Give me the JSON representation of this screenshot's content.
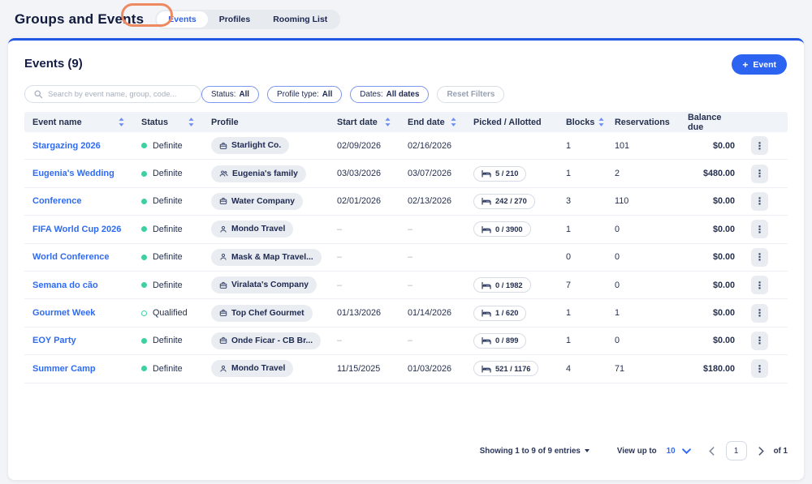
{
  "header": {
    "title": "Groups and Events",
    "tabs": [
      {
        "label": "Events",
        "active": true
      },
      {
        "label": "Profiles",
        "active": false
      },
      {
        "label": "Rooming List",
        "active": false
      }
    ],
    "annotation": "orange-highlight-ring-on-events-tab"
  },
  "panel": {
    "heading": "Events (9)",
    "add_button": {
      "icon": "plus-icon",
      "label": "Event"
    },
    "search": {
      "placeholder": "Search by event name, group, code...",
      "icon": "search-icon"
    },
    "filters": [
      {
        "label": "Status:",
        "value": "All"
      },
      {
        "label": "Profile type:",
        "value": "All"
      },
      {
        "label": "Dates:",
        "value": "All dates"
      }
    ],
    "reset_label": "Reset Filters"
  },
  "table": {
    "columns": [
      {
        "label": "Event name",
        "sortable": true
      },
      {
        "label": "Status",
        "sortable": true
      },
      {
        "label": "Profile",
        "sortable": false
      },
      {
        "label": "Start date",
        "sortable": true
      },
      {
        "label": "End date",
        "sortable": true
      },
      {
        "label": "Picked / Allotted",
        "sortable": false
      },
      {
        "label": "Blocks",
        "sortable": true
      },
      {
        "label": "Reservations",
        "sortable": false
      },
      {
        "label": "Balance due",
        "sortable": false
      },
      {
        "label": "",
        "sortable": false
      }
    ],
    "rows": [
      {
        "name": "Stargazing 2026",
        "status": "Definite",
        "status_style": "filled",
        "profile": "Starlight Co.",
        "profile_icon": "briefcase-icon",
        "start": "02/09/2026",
        "end": "02/16/2026",
        "picked": "",
        "blocks": "1",
        "reservations": "101",
        "balance": "$0.00"
      },
      {
        "name": "Eugenia's Wedding",
        "status": "Definite",
        "status_style": "filled",
        "profile": "Eugenia's family",
        "profile_icon": "people-icon",
        "start": "03/03/2026",
        "end": "03/07/2026",
        "picked": "5 / 210",
        "blocks": "1",
        "reservations": "2",
        "balance": "$480.00"
      },
      {
        "name": "Conference",
        "status": "Definite",
        "status_style": "filled",
        "profile": "Water Company",
        "profile_icon": "briefcase-icon",
        "start": "02/01/2026",
        "end": "02/13/2026",
        "picked": "242 / 270",
        "blocks": "3",
        "reservations": "110",
        "balance": "$0.00"
      },
      {
        "name": "FIFA World Cup 2026",
        "status": "Definite",
        "status_style": "filled",
        "profile": "Mondo Travel",
        "profile_icon": "person-icon",
        "start": "–",
        "end": "–",
        "picked": "0 / 3900",
        "blocks": "1",
        "reservations": "0",
        "balance": "$0.00"
      },
      {
        "name": "World Conference",
        "status": "Definite",
        "status_style": "filled",
        "profile": "Mask & Map Travel...",
        "profile_icon": "person-icon",
        "start": "–",
        "end": "–",
        "picked": "",
        "blocks": "0",
        "reservations": "0",
        "balance": "$0.00"
      },
      {
        "name": "Semana do cão",
        "status": "Definite",
        "status_style": "filled",
        "profile": "Viralata's Company",
        "profile_icon": "briefcase-icon",
        "start": "–",
        "end": "–",
        "picked": "0 / 1982",
        "blocks": "7",
        "reservations": "0",
        "balance": "$0.00"
      },
      {
        "name": "Gourmet Week",
        "status": "Qualified",
        "status_style": "hollow",
        "profile": "Top Chef Gourmet",
        "profile_icon": "briefcase-icon",
        "start": "01/13/2026",
        "end": "01/14/2026",
        "picked": "1 / 620",
        "blocks": "1",
        "reservations": "1",
        "balance": "$0.00"
      },
      {
        "name": "EOY Party",
        "status": "Definite",
        "status_style": "filled",
        "profile": "Onde Ficar - CB Br...",
        "profile_icon": "briefcase-icon",
        "start": "–",
        "end": "–",
        "picked": "0 / 899",
        "blocks": "1",
        "reservations": "0",
        "balance": "$0.00"
      },
      {
        "name": "Summer Camp",
        "status": "Definite",
        "status_style": "filled",
        "profile": "Mondo Travel",
        "profile_icon": "person-icon",
        "start": "11/15/2025",
        "end": "01/03/2026",
        "picked": "521 / 1176",
        "blocks": "4",
        "reservations": "71",
        "balance": "$180.00"
      }
    ]
  },
  "footer": {
    "showing": "Showing 1 to 9 of 9 entries",
    "view_up_to": "View up to",
    "page_size": "10",
    "page_number": "1",
    "of_label": "of 1"
  },
  "colors": {
    "accent_blue": "#2d63f1",
    "link_blue": "#2f6bf2",
    "status_green": "#3ed0a0",
    "annotation_orange": "#ee8a62",
    "card_top_border": "#2257e6"
  },
  "icons": [
    "plus-icon",
    "search-icon",
    "sort-icon",
    "briefcase-icon",
    "people-icon",
    "person-icon",
    "bed-icon",
    "kebab-menu-icon",
    "caret-down-icon",
    "chevron-down-icon",
    "chevron-left-icon",
    "chevron-right-icon"
  ]
}
